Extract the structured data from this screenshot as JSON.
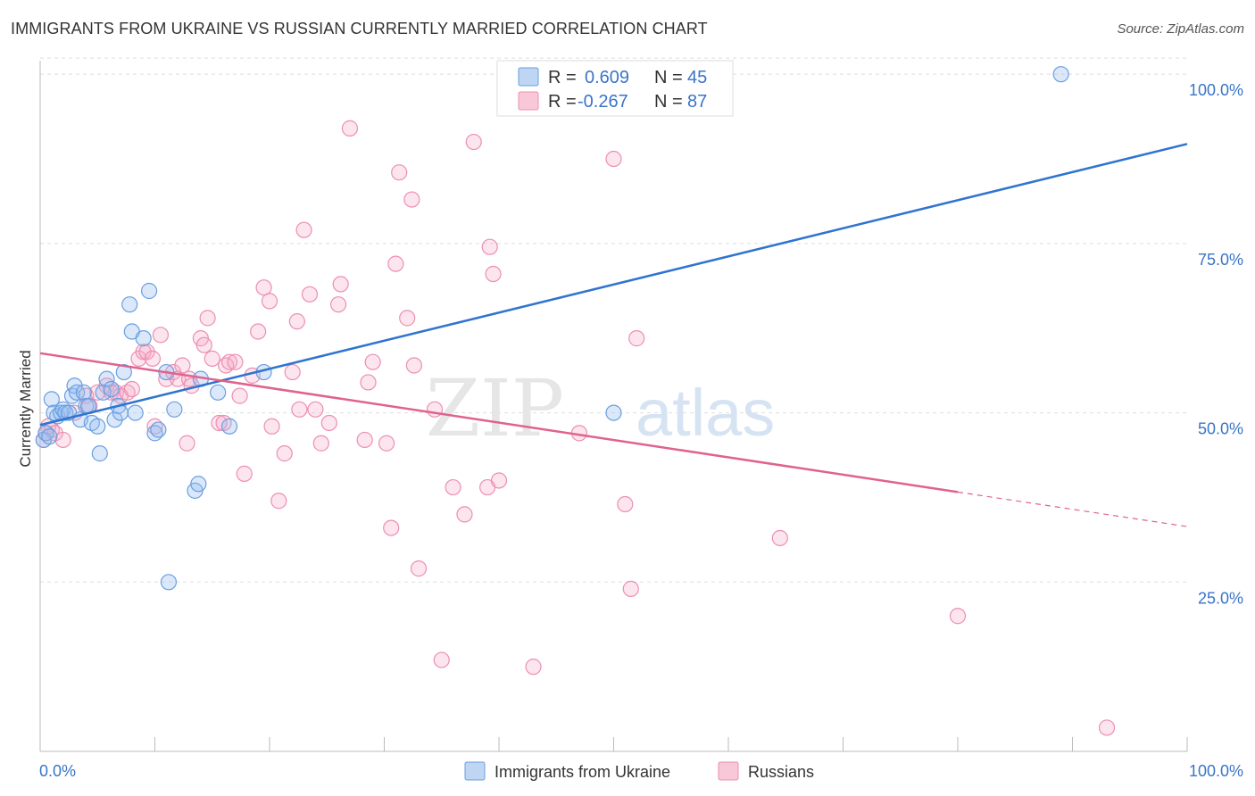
{
  "header": {
    "title": "IMMIGRANTS FROM UKRAINE VS RUSSIAN CURRENTLY MARRIED CORRELATION CHART",
    "source": "Source: ZipAtlas.com"
  },
  "watermark": {
    "zip": "ZIP",
    "atlas": "atlas"
  },
  "colors": {
    "blue": "#6a9fe0",
    "blue_line": "#2f74d0",
    "pink": "#ec8fb0",
    "pink_line": "#e0628e",
    "axis_text": "#3a74c8",
    "grid": "#dddddd"
  },
  "stats_legend": {
    "r_label": "R =",
    "n_label": "N =",
    "rows": [
      {
        "series": "Immigrants from Ukraine",
        "r": "0.609",
        "n": "45"
      },
      {
        "series": "Russians",
        "r": "-0.267",
        "n": "87"
      }
    ]
  },
  "chart_data": {
    "type": "scatter",
    "title": "IMMIGRANTS FROM UKRAINE VS RUSSIAN CURRENTLY MARRIED CORRELATION CHART",
    "xlabel": "",
    "ylabel": "Currently Married",
    "xlim": [
      0,
      100
    ],
    "ylim": [
      0,
      102
    ],
    "x_tick_labels": [
      "0.0%",
      "100.0%"
    ],
    "y_ticks": [
      25,
      50,
      75,
      100
    ],
    "y_tick_labels": [
      "25.0%",
      "50.0%",
      "75.0%",
      "100.0%"
    ],
    "grid": true,
    "legend_position": "bottom-center",
    "series": [
      {
        "name": "Immigrants from Ukraine",
        "color": "#6a9fe0",
        "points": [
          [
            0.3,
            46
          ],
          [
            0.5,
            47
          ],
          [
            0.8,
            46.5
          ],
          [
            1,
            52
          ],
          [
            1.2,
            50
          ],
          [
            1.5,
            49.5
          ],
          [
            1.8,
            50
          ],
          [
            2,
            50.5
          ],
          [
            2.2,
            50
          ],
          [
            2.5,
            50
          ],
          [
            2.8,
            52.5
          ],
          [
            3,
            54
          ],
          [
            3.2,
            53
          ],
          [
            3.5,
            49
          ],
          [
            3.8,
            53
          ],
          [
            4,
            51
          ],
          [
            4.2,
            51
          ],
          [
            4.5,
            48.5
          ],
          [
            5,
            48
          ],
          [
            5.2,
            44
          ],
          [
            5.5,
            53
          ],
          [
            5.8,
            55
          ],
          [
            6.2,
            53.5
          ],
          [
            6.5,
            49
          ],
          [
            6.8,
            51
          ],
          [
            7,
            50
          ],
          [
            7.3,
            56
          ],
          [
            7.8,
            66
          ],
          [
            8,
            62
          ],
          [
            8.3,
            50
          ],
          [
            9,
            61
          ],
          [
            9.5,
            68
          ],
          [
            10,
            47
          ],
          [
            10.3,
            47.5
          ],
          [
            11,
            56
          ],
          [
            11.2,
            25
          ],
          [
            11.7,
            50.5
          ],
          [
            13.5,
            38.5
          ],
          [
            13.8,
            39.5
          ],
          [
            14,
            55
          ],
          [
            15.5,
            53
          ],
          [
            16.5,
            48
          ],
          [
            19.5,
            56
          ],
          [
            50,
            50
          ],
          [
            89,
            100
          ]
        ],
        "trend": {
          "x": [
            0,
            100
          ],
          "y": [
            48.2,
            89.7
          ]
        }
      },
      {
        "name": "Russians",
        "color": "#ec8fb0",
        "points": [
          [
            0.3,
            46
          ],
          [
            0.5,
            47
          ],
          [
            0.7,
            48
          ],
          [
            1,
            47.5
          ],
          [
            1.3,
            47
          ],
          [
            2,
            46
          ],
          [
            3,
            50
          ],
          [
            4,
            52.5
          ],
          [
            4.3,
            51
          ],
          [
            5,
            53
          ],
          [
            5.8,
            54
          ],
          [
            6.2,
            53
          ],
          [
            6.6,
            53
          ],
          [
            7,
            52.5
          ],
          [
            7.6,
            53
          ],
          [
            8,
            53.5
          ],
          [
            8.6,
            58
          ],
          [
            9,
            59
          ],
          [
            9.3,
            59
          ],
          [
            9.8,
            58
          ],
          [
            10,
            48
          ],
          [
            10.5,
            61.5
          ],
          [
            11,
            55
          ],
          [
            11.6,
            56
          ],
          [
            12,
            55
          ],
          [
            12.4,
            57
          ],
          [
            12.8,
            45.5
          ],
          [
            13,
            55
          ],
          [
            13.2,
            54
          ],
          [
            14,
            61
          ],
          [
            14.3,
            60
          ],
          [
            14.6,
            64
          ],
          [
            15,
            58
          ],
          [
            15.6,
            48.5
          ],
          [
            16,
            48.5
          ],
          [
            16.2,
            57
          ],
          [
            16.5,
            57.5
          ],
          [
            17,
            57.5
          ],
          [
            17.4,
            52.5
          ],
          [
            17.8,
            41
          ],
          [
            18.5,
            55.5
          ],
          [
            19,
            62
          ],
          [
            19.5,
            68.5
          ],
          [
            20,
            66.5
          ],
          [
            20.2,
            48
          ],
          [
            20.8,
            37
          ],
          [
            21.3,
            44
          ],
          [
            22,
            56
          ],
          [
            22.4,
            63.5
          ],
          [
            22.6,
            50.5
          ],
          [
            23,
            77
          ],
          [
            23.5,
            67.5
          ],
          [
            24,
            50.5
          ],
          [
            24.5,
            45.5
          ],
          [
            25.2,
            48.5
          ],
          [
            26,
            66
          ],
          [
            26.2,
            69
          ],
          [
            27,
            92
          ],
          [
            28.3,
            46
          ],
          [
            28.6,
            54.5
          ],
          [
            29,
            57.5
          ],
          [
            30.2,
            45.5
          ],
          [
            30.6,
            33
          ],
          [
            31,
            72
          ],
          [
            31.3,
            85.5
          ],
          [
            32,
            64
          ],
          [
            32.4,
            81.5
          ],
          [
            32.6,
            57
          ],
          [
            33,
            27
          ],
          [
            34.4,
            50.5
          ],
          [
            35,
            13.5
          ],
          [
            36,
            39
          ],
          [
            37,
            35
          ],
          [
            37.8,
            90
          ],
          [
            39,
            39
          ],
          [
            39.2,
            74.5
          ],
          [
            39.5,
            70.5
          ],
          [
            40,
            40
          ],
          [
            43,
            12.5
          ],
          [
            47,
            47
          ],
          [
            50,
            87.5
          ],
          [
            51,
            36.5
          ],
          [
            51.5,
            24
          ],
          [
            52,
            61
          ],
          [
            64.5,
            31.5
          ],
          [
            80,
            20
          ],
          [
            93,
            3.5
          ]
        ],
        "trend": {
          "x": [
            0,
            80
          ],
          "y": [
            58.8,
            38.3
          ]
        },
        "trend_dashed_extension": {
          "x": [
            80,
            100
          ],
          "y": [
            38.3,
            33.2
          ]
        }
      }
    ]
  }
}
